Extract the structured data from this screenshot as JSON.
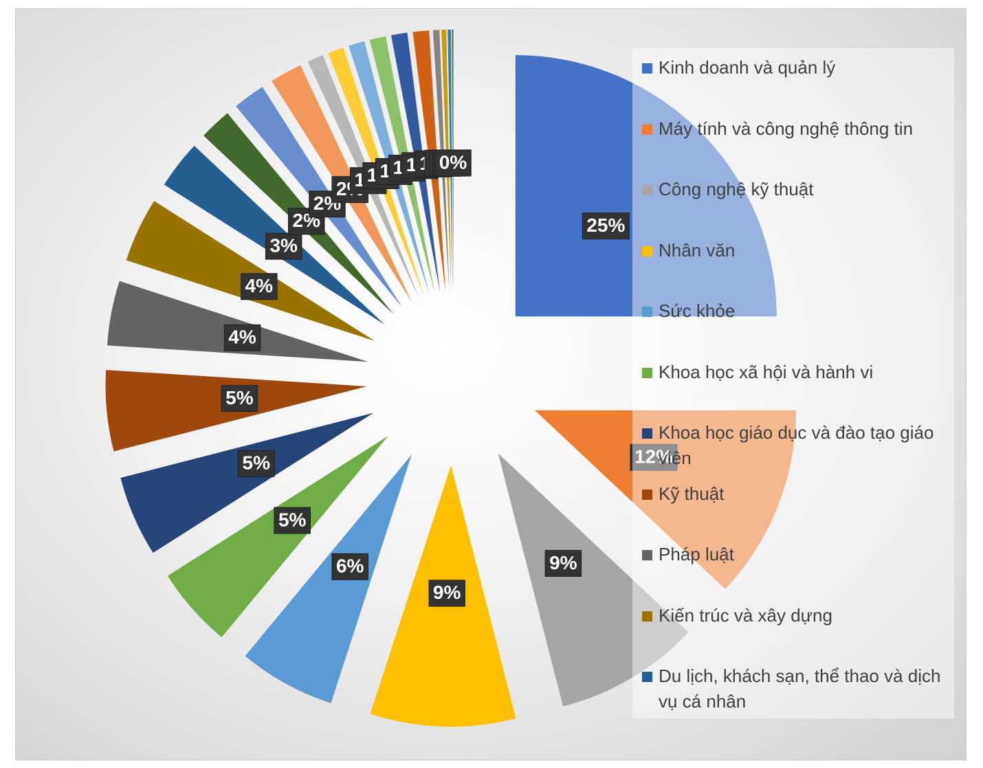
{
  "chart_data": {
    "type": "pie",
    "categories": [
      "Kinh doanh và quản lý",
      "Máy tính và công nghệ thông tin",
      "Công nghệ kỹ thuật",
      "Nhân văn",
      "Sức khỏe",
      "Khoa học xã hội và hành vi",
      "Khoa học giáo dục và đào tạo giáo viên",
      "Kỹ thuật",
      "Pháp luật",
      "Kiến trúc và xây dựng",
      "Du lịch, khách sạn, thể thao và dịch vụ cá nhân",
      null,
      null,
      null,
      null,
      null,
      null,
      null,
      null,
      null,
      null,
      null,
      null,
      null
    ],
    "values": [
      25,
      12,
      9,
      9,
      6,
      5,
      5,
      5,
      4,
      4,
      3,
      2,
      2,
      2,
      1,
      1,
      1,
      1,
      1,
      1,
      0.4,
      0.3,
      0.2,
      0.1
    ],
    "value_labels": [
      "25%",
      "12%",
      "9%",
      "9%",
      "6%",
      "5%",
      "5%",
      "5%",
      "4%",
      "4%",
      "3%",
      "2%",
      "2%",
      "2%",
      "1%",
      "1%",
      "1%",
      "1%",
      "1%",
      "1%",
      "0%",
      "0%",
      "0%",
      "0%"
    ],
    "colors": [
      "#4472c4",
      "#ed7d31",
      "#a5a5a5",
      "#ffc000",
      "#5b9bd5",
      "#70ad47",
      "#264478",
      "#9e480e",
      "#636363",
      "#997300",
      "#255e91",
      "#43682b",
      "#698ed0",
      "#f1975a",
      "#b7b7b7",
      "#ffcd33",
      "#7cafdd",
      "#8cc168",
      "#335aa1",
      "#d26012",
      "#848484",
      "#cc9a00",
      "#3a79bb",
      "#548235"
    ],
    "legend": "right"
  }
}
